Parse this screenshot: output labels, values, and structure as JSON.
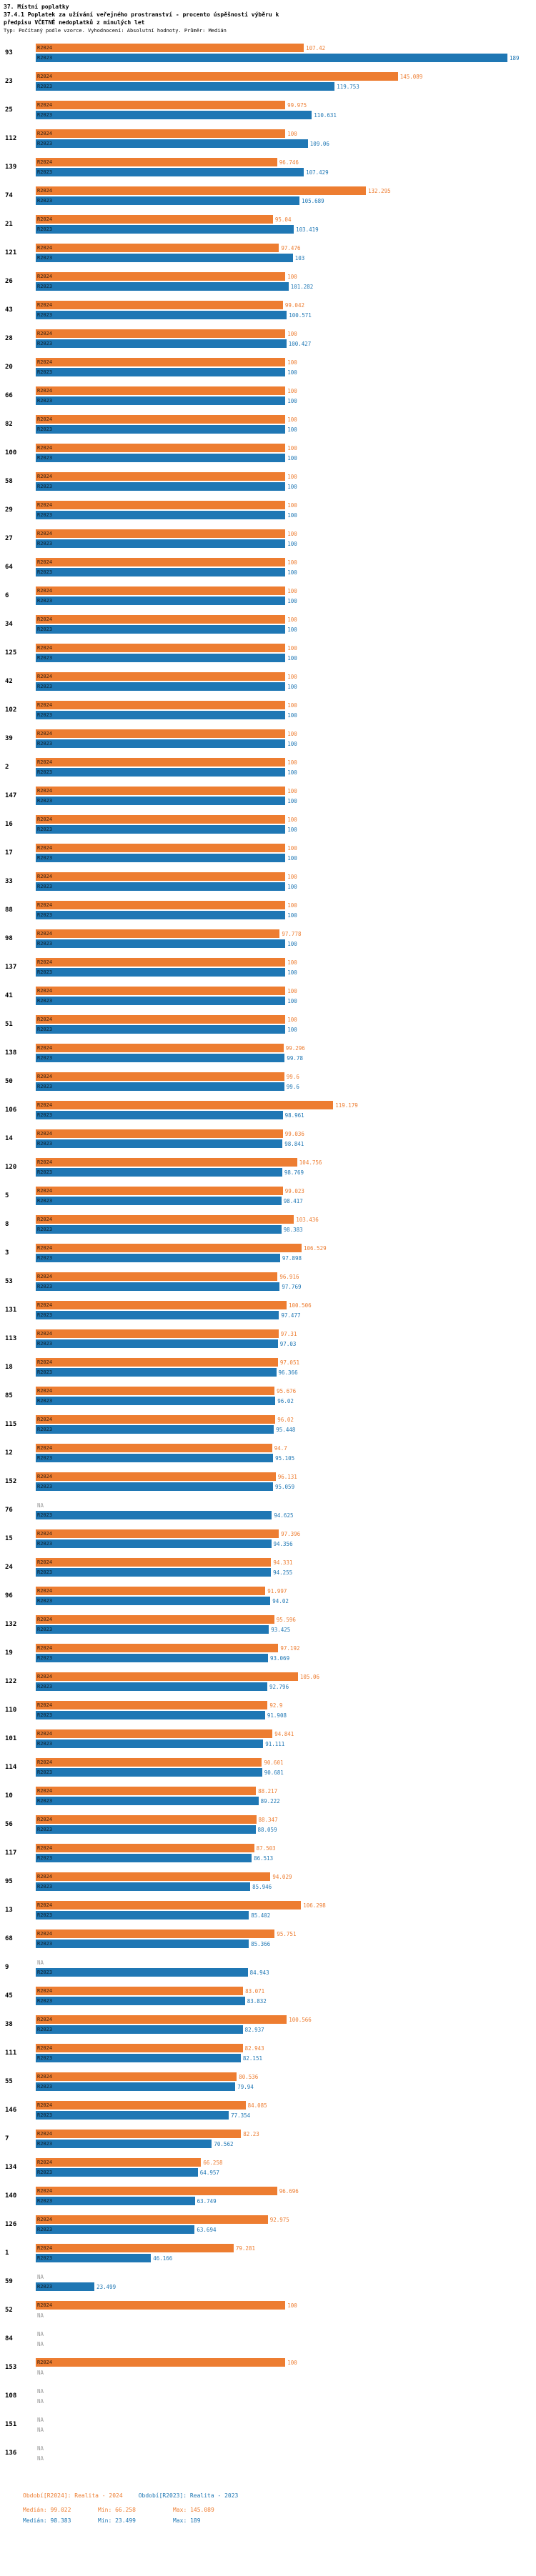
{
  "header": {
    "title1": "37. Místní poplatky",
    "title2": "37.4.1 Poplatek za užívání veřejného prostranství - procento úspěšnosti výběru k předpisu VČETNĚ nedoplatků z minulých let",
    "title3": "Typ: Počítaný podle vzorce. Vyhodnocení: Absolutní hodnoty. Průměr: Medián"
  },
  "chart_data": {
    "type": "bar",
    "orientation": "horizontal",
    "x_max": 189,
    "na_label": "NA",
    "series_labels": {
      "r2024": "R2024",
      "r2023": "R2023"
    },
    "colors": {
      "r2024": "#ED7D31",
      "r2023": "#1F77B4"
    },
    "legend_position": "bottom",
    "groups": [
      {
        "id": "93",
        "r2024": 107.42,
        "r2023": 189
      },
      {
        "id": "23",
        "r2024": 145.089,
        "r2023": 119.753
      },
      {
        "id": "25",
        "r2024": 99.975,
        "r2023": 110.631
      },
      {
        "id": "112",
        "r2024": 100,
        "r2023": 109.06
      },
      {
        "id": "139",
        "r2024": 96.746,
        "r2023": 107.429
      },
      {
        "id": "74",
        "r2024": 132.295,
        "r2023": 105.689
      },
      {
        "id": "21",
        "r2024": 95.04,
        "r2023": 103.419
      },
      {
        "id": "121",
        "r2024": 97.476,
        "r2023": 103
      },
      {
        "id": "26",
        "r2024": 100,
        "r2023": 101.282
      },
      {
        "id": "43",
        "r2024": 99.042,
        "r2023": 100.571
      },
      {
        "id": "28",
        "r2024": 100,
        "r2023": 100.427
      },
      {
        "id": "20",
        "r2024": 100,
        "r2023": 100
      },
      {
        "id": "66",
        "r2024": 100,
        "r2023": 100
      },
      {
        "id": "82",
        "r2024": 100,
        "r2023": 100
      },
      {
        "id": "100",
        "r2024": 100,
        "r2023": 100
      },
      {
        "id": "58",
        "r2024": 100,
        "r2023": 100
      },
      {
        "id": "29",
        "r2024": 100,
        "r2023": 100
      },
      {
        "id": "27",
        "r2024": 100,
        "r2023": 100
      },
      {
        "id": "64",
        "r2024": 100,
        "r2023": 100
      },
      {
        "id": "6",
        "r2024": 100,
        "r2023": 100
      },
      {
        "id": "34",
        "r2024": 100,
        "r2023": 100
      },
      {
        "id": "125",
        "r2024": 100,
        "r2023": 100
      },
      {
        "id": "42",
        "r2024": 100,
        "r2023": 100
      },
      {
        "id": "102",
        "r2024": 100,
        "r2023": 100
      },
      {
        "id": "39",
        "r2024": 100,
        "r2023": 100
      },
      {
        "id": "2",
        "r2024": 100,
        "r2023": 100
      },
      {
        "id": "147",
        "r2024": 100,
        "r2023": 100
      },
      {
        "id": "16",
        "r2024": 100,
        "r2023": 100
      },
      {
        "id": "17",
        "r2024": 100,
        "r2023": 100
      },
      {
        "id": "33",
        "r2024": 100,
        "r2023": 100
      },
      {
        "id": "88",
        "r2024": 100,
        "r2023": 100
      },
      {
        "id": "98",
        "r2024": 97.778,
        "r2023": 100
      },
      {
        "id": "137",
        "r2024": 100,
        "r2023": 100
      },
      {
        "id": "41",
        "r2024": 100,
        "r2023": 100
      },
      {
        "id": "51",
        "r2024": 100,
        "r2023": 100
      },
      {
        "id": "138",
        "r2024": 99.296,
        "r2023": 99.78
      },
      {
        "id": "50",
        "r2024": 99.6,
        "r2023": 99.6
      },
      {
        "id": "106",
        "r2024": 119.179,
        "r2023": 98.961
      },
      {
        "id": "14",
        "r2024": 99.036,
        "r2023": 98.841
      },
      {
        "id": "120",
        "r2024": 104.756,
        "r2023": 98.769
      },
      {
        "id": "5",
        "r2024": 99.023,
        "r2023": 98.417
      },
      {
        "id": "8",
        "r2024": 103.436,
        "r2023": 98.383
      },
      {
        "id": "3",
        "r2024": 106.529,
        "r2023": 97.898
      },
      {
        "id": "53",
        "r2024": 96.916,
        "r2023": 97.769
      },
      {
        "id": "131",
        "r2024": 100.506,
        "r2023": 97.477
      },
      {
        "id": "113",
        "r2024": 97.31,
        "r2023": 97.03
      },
      {
        "id": "18",
        "r2024": 97.051,
        "r2023": 96.366
      },
      {
        "id": "85",
        "r2024": 95.676,
        "r2023": 96.02
      },
      {
        "id": "115",
        "r2024": 96.02,
        "r2023": 95.448
      },
      {
        "id": "12",
        "r2024": 94.7,
        "r2023": 95.105
      },
      {
        "id": "152",
        "r2024": 96.131,
        "r2023": 95.059
      },
      {
        "id": "76",
        "r2024": null,
        "r2023": 94.625
      },
      {
        "id": "15",
        "r2024": 97.396,
        "r2023": 94.356
      },
      {
        "id": "24",
        "r2024": 94.331,
        "r2023": 94.255
      },
      {
        "id": "96",
        "r2024": 91.997,
        "r2023": 94.02
      },
      {
        "id": "132",
        "r2024": 95.596,
        "r2023": 93.425
      },
      {
        "id": "19",
        "r2024": 97.192,
        "r2023": 93.069
      },
      {
        "id": "122",
        "r2024": 105.06,
        "r2023": 92.796
      },
      {
        "id": "110",
        "r2024": 92.9,
        "r2023": 91.908
      },
      {
        "id": "101",
        "r2024": 94.841,
        "r2023": 91.111
      },
      {
        "id": "114",
        "r2024": 90.601,
        "r2023": 90.681
      },
      {
        "id": "10",
        "r2024": 88.217,
        "r2023": 89.222
      },
      {
        "id": "56",
        "r2024": 88.347,
        "r2023": 88.059
      },
      {
        "id": "117",
        "r2024": 87.503,
        "r2023": 86.513
      },
      {
        "id": "95",
        "r2024": 94.029,
        "r2023": 85.946
      },
      {
        "id": "13",
        "r2024": 106.298,
        "r2023": 85.402
      },
      {
        "id": "68",
        "r2024": 95.751,
        "r2023": 85.366
      },
      {
        "id": "9",
        "r2024": null,
        "r2023": 84.943
      },
      {
        "id": "45",
        "r2024": 83.071,
        "r2023": 83.832
      },
      {
        "id": "38",
        "r2024": 100.566,
        "r2023": 82.937
      },
      {
        "id": "111",
        "r2024": 82.943,
        "r2023": 82.151
      },
      {
        "id": "55",
        "r2024": 80.536,
        "r2023": 79.94
      },
      {
        "id": "146",
        "r2024": 84.085,
        "r2023": 77.354
      },
      {
        "id": "7",
        "r2024": 82.23,
        "r2023": 70.562
      },
      {
        "id": "134",
        "r2024": 66.258,
        "r2023": 64.957
      },
      {
        "id": "140",
        "r2024": 96.696,
        "r2023": 63.749
      },
      {
        "id": "126",
        "r2024": 92.975,
        "r2023": 63.694
      },
      {
        "id": "1",
        "r2024": 79.281,
        "r2023": 46.166
      },
      {
        "id": "59",
        "r2024": null,
        "r2023": 23.499
      },
      {
        "id": "52",
        "r2024": 100,
        "r2023": null
      },
      {
        "id": "84",
        "r2024": null,
        "r2023": null
      },
      {
        "id": "153",
        "r2024": 100,
        "r2023": null
      },
      {
        "id": "108",
        "r2024": null,
        "r2023": null
      },
      {
        "id": "151",
        "r2024": null,
        "r2023": null
      },
      {
        "id": "136",
        "r2024": null,
        "r2023": null
      }
    ]
  },
  "legend": {
    "r2024": {
      "label": "Období[R2024]: Realita - 2024",
      "median": "Medián: 99.022",
      "min": "Min: 66.258",
      "max": "Max: 145.089"
    },
    "r2023": {
      "label": "Období[R2023]: Realita - 2023",
      "median": "Medián: 98.383",
      "min": "Min: 23.499",
      "max": "Max: 189"
    }
  }
}
